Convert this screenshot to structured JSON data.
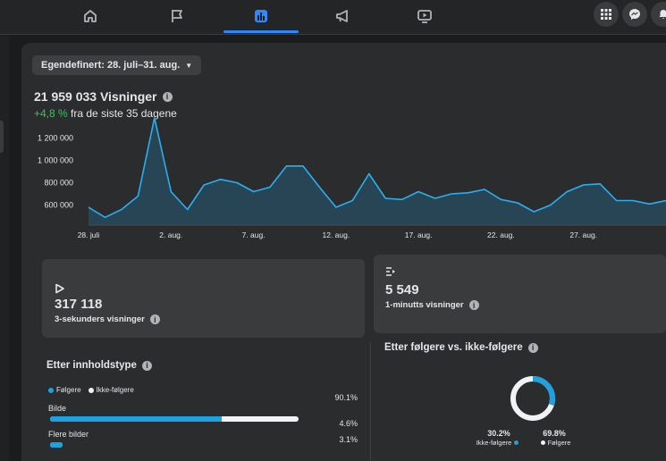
{
  "nav": {
    "items": [
      {
        "icon": "home-icon",
        "active": false
      },
      {
        "icon": "flag-icon",
        "active": false
      },
      {
        "icon": "insights-icon",
        "active": true
      },
      {
        "icon": "megaphone-icon",
        "active": false
      },
      {
        "icon": "video-icon",
        "active": false
      }
    ],
    "right_buttons": [
      "apps-grid-icon",
      "messenger-icon",
      "notifications-icon"
    ]
  },
  "date_filter": {
    "label": "Egendefinert: 28. juli–31. aug."
  },
  "views": {
    "title": "21 959 033 Visninger",
    "change": "+4,8 %",
    "change_suffix": "fra de siste 35 dagene"
  },
  "colors": {
    "accent": "#1da1e0",
    "positive": "#45bd62",
    "nav_active": "#2d88ff"
  },
  "chart_data": {
    "type": "area",
    "y_ticks": [
      "1 200 000",
      "1 000 000",
      "800 000",
      "600 000"
    ],
    "x_ticks": [
      "28. juli",
      "2. aug.",
      "7. aug.",
      "12. aug.",
      "17. aug.",
      "22. aug.",
      "27. aug."
    ],
    "ylim": [
      500000,
      1300000
    ],
    "series": [
      {
        "values": [
          580000,
          490000,
          560000,
          680000,
          1380000,
          720000,
          560000,
          780000,
          830000,
          800000,
          720000,
          760000,
          950000,
          950000,
          760000,
          580000,
          640000,
          880000,
          660000,
          650000,
          720000,
          660000,
          700000,
          710000,
          740000,
          650000,
          620000,
          540000,
          600000,
          720000,
          780000,
          790000,
          640000,
          640000,
          610000,
          640000
        ]
      }
    ],
    "grid": false
  },
  "metrics": [
    {
      "icon": "play-icon",
      "value": "317 118",
      "label": "3-sekunders visninger"
    },
    {
      "icon": "list-play-icon",
      "value": "5 549",
      "label": "1-minutts visninger"
    }
  ],
  "content_type": {
    "title": "Etter innholdstype",
    "legend": [
      "Følgere",
      "Ikke-følgere"
    ],
    "rows": [
      {
        "label": "Bilde",
        "pct": "90.1%",
        "share": 0.901,
        "followers_share": 0.69
      },
      {
        "label": "Flere bilder",
        "pct": "4.6%",
        "share": 0.046,
        "followers_share": 1.0
      },
      {
        "label": "",
        "pct": "3.1%",
        "share": 0.031,
        "followers_share": 1.0
      }
    ]
  },
  "followers": {
    "title": "Etter følgere vs. ikke-følgere",
    "non_followers_pct": "30.2%",
    "non_followers_label": "Ikke-følgere",
    "followers_pct": "69.8%",
    "followers_label": "Følgere",
    "non_followers_share": 0.302
  }
}
